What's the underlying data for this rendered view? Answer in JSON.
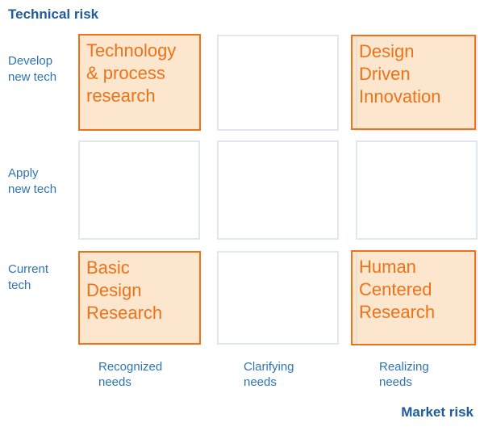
{
  "axes": {
    "vertical_title": "Technical risk",
    "horizontal_title": "Market risk"
  },
  "matrix": {
    "row_labels": [
      "Develop\nnew tech",
      "Apply\nnew tech",
      "Current\ntech"
    ],
    "col_labels": [
      "Recognized\nneeds",
      "Clarifying\nneeds",
      "Realizing\nneeds"
    ],
    "cells": {
      "top_left": "Technology\n& process\nresearch",
      "top_right": "Design\nDriven\nInnovation",
      "bottom_left": "Basic\nDesign\nResearch",
      "bottom_right": "Human\nCentered\nResearch"
    }
  },
  "colors": {
    "axis_title_blue": "#1F5C99",
    "label_blue": "#2E74B5",
    "empty_cell_border": "#E1E7ED",
    "highlight_border": "#ED7218",
    "highlight_fill": "#FCE6CE",
    "highlight_text": "#ED7218",
    "background": "#FFFFFF"
  }
}
